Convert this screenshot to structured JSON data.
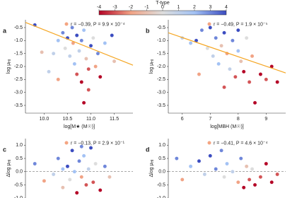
{
  "colorbar": {
    "label": "T-type",
    "lim": [
      -4,
      4
    ],
    "ticks": [
      -4,
      -3,
      -2,
      -1,
      0,
      1,
      2,
      3,
      4
    ],
    "colormap": [
      "#b40426",
      "#f1a385",
      "#dddddd",
      "#a3c2f4",
      "#3b4cc0"
    ]
  },
  "chart_data": [
    {
      "type": "scatter",
      "panel": "a",
      "xlabel": "log[M★ (M☉)]",
      "ylabel": "log μ",
      "ylabel_sub": "HI",
      "annotation": "r = −0.39, P = 9.9 × 10⁻⁴",
      "annotation_color": "#f4a582",
      "fit_color": "#f5a623",
      "xlim": [
        9.6,
        11.9
      ],
      "xticks": [
        {
          "value": 10,
          "label": "10.0"
        },
        10.5,
        {
          "value": 11,
          "label": "11.0"
        },
        11.5
      ],
      "ylim": [
        -3.8,
        -0.2
      ],
      "yticks": [
        -0.5,
        {
          "value": -1,
          "label": "-1.0"
        },
        -1.5,
        {
          "value": -2,
          "label": "-2.0"
        },
        -2.5,
        {
          "value": -3,
          "label": "-3.0"
        },
        -3.5
      ],
      "fit": {
        "x": [
          9.6,
          11.9
        ],
        "y": [
          -0.3,
          -1.95
        ]
      },
      "x": [
        9.8,
        9.95,
        10.2,
        10.3,
        10.4,
        10.45,
        10.5,
        10.55,
        10.6,
        10.62,
        10.65,
        10.7,
        10.7,
        10.75,
        10.8,
        10.8,
        10.85,
        10.9,
        10.95,
        11.0,
        11.05,
        11.1,
        11.15,
        11.2,
        11.3,
        11.45,
        11.5,
        10.85,
        10.3,
        10.1,
        10.95
      ],
      "values": [
        -0.4,
        -1.45,
        -1.5,
        -1.0,
        -0.7,
        -1.3,
        -0.9,
        -1.6,
        -0.5,
        -1.1,
        -1.9,
        -0.8,
        -2.3,
        -1.4,
        -1.0,
        -2.6,
        -0.6,
        -1.7,
        -2.1,
        -1.2,
        -0.9,
        -2.0,
        -1.5,
        -2.4,
        -1.1,
        -0.8,
        -1.8,
        -3.4,
        -2.5,
        -2.2,
        -2.9
      ],
      "color_values": [
        4,
        -1,
        1,
        2,
        3,
        0,
        4,
        1,
        3,
        -2,
        2,
        4,
        -3,
        1,
        3,
        -4,
        2,
        -1,
        -3,
        4,
        0,
        -2,
        3,
        -4,
        2,
        4,
        -1,
        -4,
        -2,
        1,
        -3
      ]
    },
    {
      "type": "scatter",
      "panel": "b",
      "xlabel": "log[MBH (M☉)]",
      "ylabel": "log μ",
      "ylabel_sub": "HI",
      "annotation": "r = −0.49, P = 1.9 × 10⁻⁵",
      "annotation_color": "#f4a582",
      "fit_color": "#f5a623",
      "xlim": [
        5.5,
        9.7
      ],
      "xticks": [
        6,
        7,
        8,
        9
      ],
      "ylim": [
        -3.8,
        -0.2
      ],
      "yticks": [
        -0.5,
        {
          "value": -1,
          "label": "-1.0"
        },
        -1.5,
        {
          "value": -2,
          "label": "-2.0"
        },
        -2.5,
        {
          "value": -3,
          "label": "-3.0"
        },
        -3.5
      ],
      "fit": {
        "x": [
          5.5,
          9.7
        ],
        "y": [
          -0.7,
          -2.25
        ]
      },
      "x": [
        6.0,
        6.3,
        6.5,
        6.7,
        6.9,
        7.0,
        7.1,
        7.2,
        7.3,
        7.4,
        7.5,
        7.6,
        7.7,
        7.8,
        7.9,
        8.0,
        8.0,
        8.1,
        8.2,
        8.3,
        8.4,
        8.5,
        8.6,
        8.8,
        9.0,
        9.2,
        9.4,
        6.6,
        7.5
      ],
      "values": [
        -0.9,
        -1.1,
        -1.0,
        -0.6,
        -1.3,
        -0.5,
        -1.6,
        -0.9,
        -1.9,
        -1.2,
        -0.7,
        -1.5,
        -2.1,
        -1.0,
        -2.4,
        -1.4,
        -0.6,
        -1.8,
        -2.2,
        -0.9,
        -2.6,
        -1.6,
        -3.4,
        -2.3,
        -2.5,
        -2.0,
        -2.6,
        -2.3,
        -2.8
      ],
      "color_values": [
        1,
        2,
        4,
        3,
        0,
        4,
        1,
        3,
        2,
        -1,
        4,
        -2,
        1,
        3,
        -3,
        2,
        4,
        -1,
        -4,
        0,
        -3,
        -2,
        -4,
        -4,
        -3,
        -4,
        -4,
        -2,
        -3
      ]
    },
    {
      "type": "scatter",
      "panel": "c",
      "ylabel": "Δlog μ",
      "ylabel_sub": "HI",
      "annotation": "r = −0.13, P = 2.9 × 10⁻¹",
      "annotation_color": "#f4a582",
      "xlim": [
        9.6,
        11.9
      ],
      "ylim": [
        -1.05,
        1.25
      ],
      "yticks": [
        {
          "value": 1,
          "label": "1.0"
        },
        0.5,
        {
          "value": 0,
          "label": "0.0"
        },
        -0.5,
        {
          "value": -1,
          "label": "-1.0"
        }
      ],
      "zero_line": 0,
      "x": [
        9.8,
        10.0,
        10.2,
        10.3,
        10.4,
        10.5,
        10.55,
        10.6,
        10.65,
        10.7,
        10.75,
        10.8,
        10.85,
        10.9,
        10.95,
        11.0,
        11.05,
        11.1,
        11.2,
        11.3,
        11.4,
        10.4,
        10.8
      ],
      "values": [
        0.3,
        -0.35,
        -0.1,
        0.5,
        -0.6,
        0.2,
        -0.3,
        0.8,
        0.0,
        -0.8,
        0.4,
        -0.2,
        0.6,
        -0.5,
        0.1,
        0.9,
        -0.4,
        0.3,
        -0.7,
        0.2,
        -0.2,
        0.1,
        0.95
      ],
      "color_values": [
        3,
        -2,
        1,
        3,
        -1,
        4,
        0,
        4,
        2,
        -4,
        3,
        -2,
        2,
        -3,
        1,
        4,
        -3,
        0,
        -4,
        3,
        -1,
        2,
        3
      ]
    },
    {
      "type": "scatter",
      "panel": "d",
      "ylabel": "Δlog μ",
      "ylabel_sub": "HI",
      "annotation": "r = −0.41, P = 4.6 × 10⁻⁴",
      "annotation_color": "#f4a582",
      "xlim": [
        5.5,
        9.7
      ],
      "ylim": [
        -1.05,
        1.25
      ],
      "yticks": [
        {
          "value": 1,
          "label": "1.0"
        },
        0.5,
        {
          "value": 0,
          "label": "0.0"
        },
        -0.5,
        {
          "value": -1,
          "label": "-1.0"
        }
      ],
      "zero_line": 0,
      "x": [
        5.8,
        6.3,
        6.6,
        6.8,
        7.0,
        7.2,
        7.4,
        7.5,
        7.6,
        7.8,
        8.0,
        8.1,
        8.2,
        8.3,
        8.4,
        8.5,
        8.6,
        8.8,
        9.0,
        9.2,
        9.4,
        6.0
      ],
      "values": [
        0.5,
        0.2,
        0.4,
        -0.1,
        0.6,
        0.1,
        0.8,
        -0.2,
        0.3,
        0.0,
        -0.4,
        0.5,
        -0.6,
        0.2,
        -0.3,
        0.1,
        -0.5,
        -0.2,
        0.3,
        -0.4,
        -0.1,
        -0.3
      ],
      "color_values": [
        3,
        2,
        4,
        1,
        4,
        3,
        3,
        0,
        2,
        1,
        -2,
        3,
        -4,
        -1,
        -3,
        0,
        -4,
        -3,
        -4,
        -4,
        -3,
        -2
      ]
    }
  ]
}
